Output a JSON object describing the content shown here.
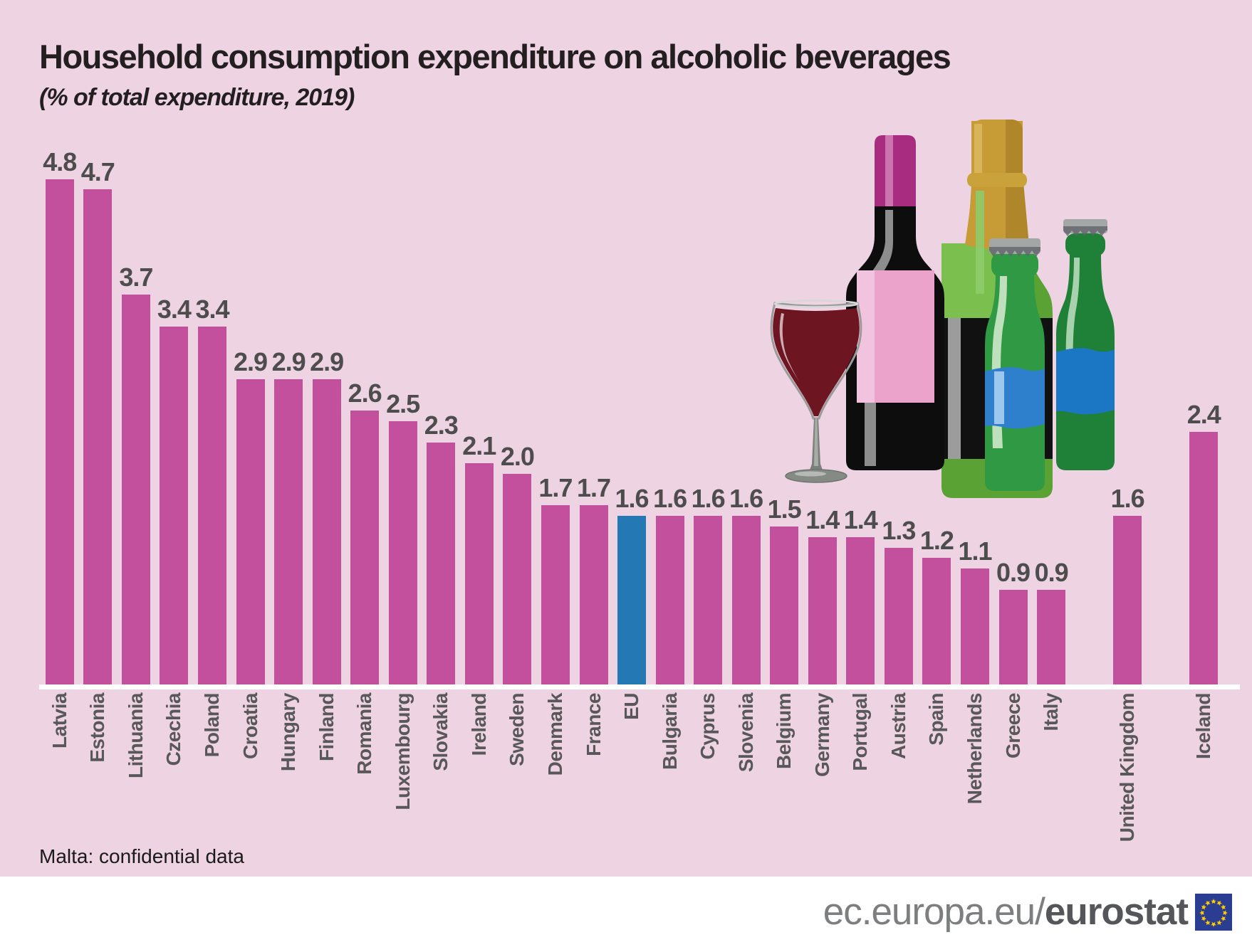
{
  "title": "Household consumption expenditure on alcoholic beverages",
  "subtitle": "(% of total expenditure, 2019)",
  "note": "Malta: confidential data",
  "footer": {
    "site_prefix": "ec.europa.eu/",
    "site_bold": "eurostat"
  },
  "colors": {
    "background": "#eed3e2",
    "bar": "#c2509c",
    "eu_bar": "#2478b4",
    "value_label": "#4d4d4d",
    "country_label": "#58585a",
    "baseline": "#ffffff",
    "title_text": "#231f20"
  },
  "chart_data": {
    "type": "bar",
    "title": "Household consumption expenditure on alcoholic beverages",
    "subtitle": "(% of total expenditure, 2019)",
    "ylabel": "% of total expenditure",
    "ylim": [
      0,
      5
    ],
    "grid": false,
    "legend": "none",
    "highlight_category": "EU",
    "categories": [
      "Latvia",
      "Estonia",
      "Lithuania",
      "Czechia",
      "Poland",
      "Croatia",
      "Hungary",
      "Finland",
      "Romania",
      "Luxembourg",
      "Slovakia",
      "Ireland",
      "Sweden",
      "Denmark",
      "France",
      "EU",
      "Bulgaria",
      "Cyprus",
      "Slovenia",
      "Belgium",
      "Germany",
      "Portugal",
      "Austria",
      "Spain",
      "Netherlands",
      "Greece",
      "Italy",
      "United Kingdom",
      "Iceland"
    ],
    "values": [
      4.8,
      4.7,
      3.7,
      3.4,
      3.4,
      2.9,
      2.9,
      2.9,
      2.6,
      2.5,
      2.3,
      2.1,
      2.0,
      1.7,
      1.7,
      1.6,
      1.6,
      1.6,
      1.6,
      1.5,
      1.4,
      1.4,
      1.3,
      1.2,
      1.1,
      0.9,
      0.9,
      1.6,
      2.4
    ],
    "slots": [
      0,
      1,
      2,
      3,
      4,
      5,
      6,
      7,
      8,
      9,
      10,
      11,
      12,
      13,
      14,
      15,
      16,
      17,
      18,
      19,
      20,
      21,
      22,
      23,
      24,
      25,
      26,
      28,
      30
    ],
    "annotation": "Malta: confidential data"
  }
}
